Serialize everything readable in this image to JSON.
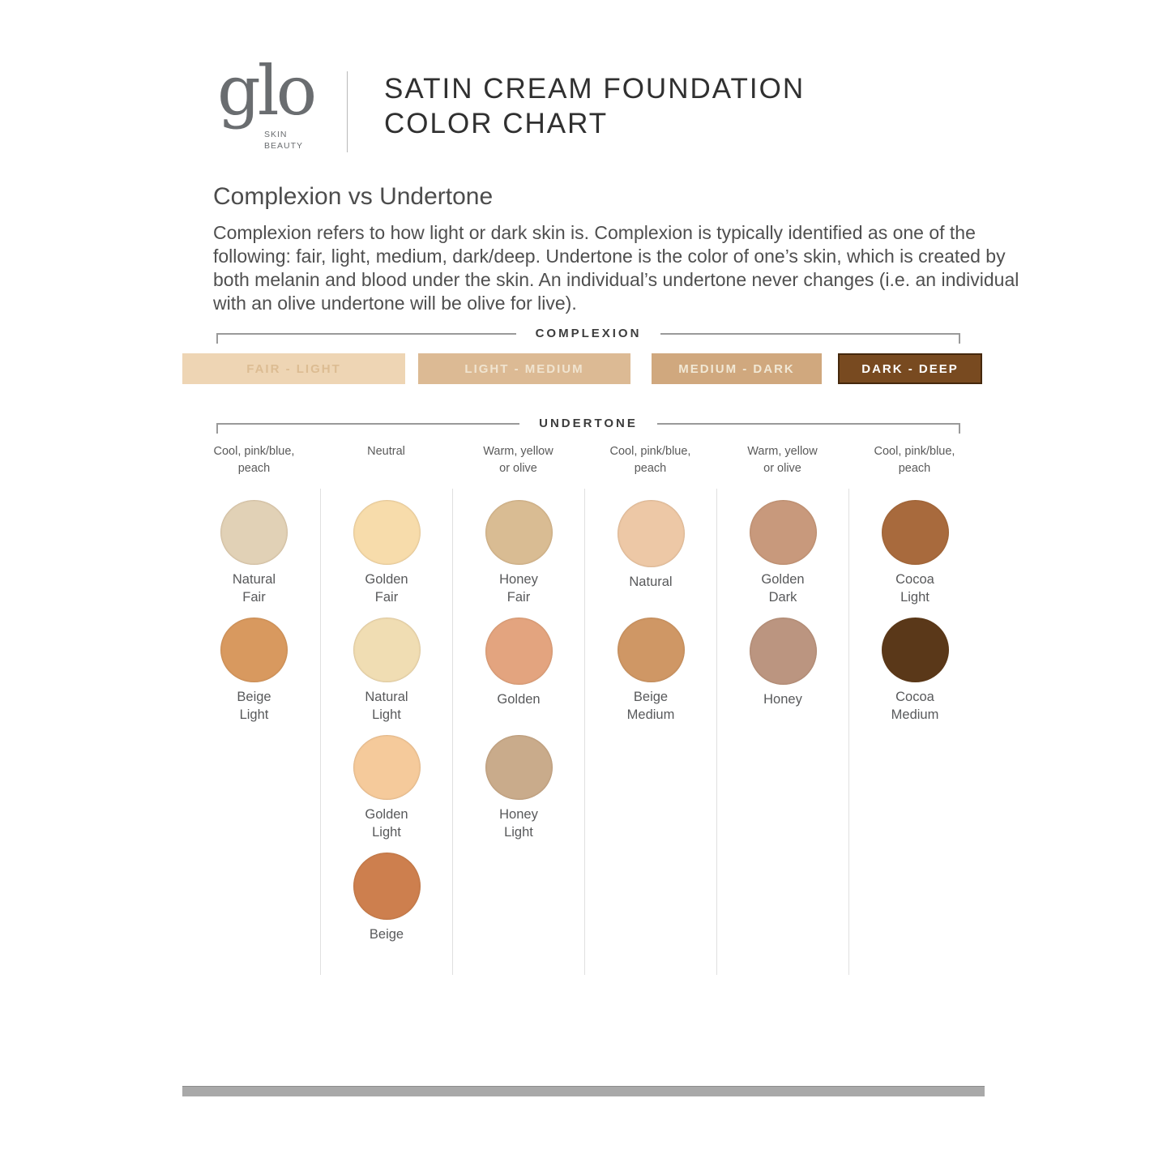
{
  "header": {
    "logo_text": "glo",
    "logo_sub": "SKIN\nBEAUTY",
    "title_line1": "SATIN CREAM FOUNDATION",
    "title_line2": "COLOR CHART"
  },
  "intro": {
    "heading": "Complexion vs Undertone",
    "body": "Complexion refers to how light or dark skin is. Complexion is typically identified as one of the following: fair, light, medium, dark/deep. Undertone is the color of one’s skin, which is created by both melanin and blood under the skin. An individual’s undertone never changes (i.e. an individual with an olive undertone will be olive for live)."
  },
  "complexion": {
    "label": "COMPLEXION",
    "bars": [
      {
        "label": "FAIR - LIGHT",
        "color": "#eed5b4",
        "text_color": "#dcbc92"
      },
      {
        "label": "LIGHT - MEDIUM",
        "color": "#dcba94",
        "text_color": "#f0e4d0"
      },
      {
        "label": "MEDIUM - DARK",
        "color": "#d0a87e",
        "text_color": "#f1e8d5"
      },
      {
        "label": "DARK - DEEP",
        "color": "#784a20",
        "text_color": "#ffffff",
        "border_color": "#45280d"
      }
    ]
  },
  "undertone": {
    "label": "UNDERTONE",
    "columns": [
      {
        "header": "Cool, pink/blue,\npeach",
        "swatches": [
          {
            "name": "Natural\nFair",
            "color": "#e1d1b6"
          },
          {
            "name": "Beige\nLight",
            "color": "#d8995f"
          }
        ]
      },
      {
        "header": "Neutral",
        "swatches": [
          {
            "name": "Golden\nFair",
            "color": "#f7dcab"
          },
          {
            "name": "Natural\nLight",
            "color": "#f0ddb3"
          },
          {
            "name": "Golden\nLight",
            "color": "#f5ca9b"
          },
          {
            "name": "Beige",
            "color": "#cd7f4e"
          }
        ]
      },
      {
        "header": "Warm, yellow\nor olive",
        "swatches": [
          {
            "name": "Honey\nFair",
            "color": "#d9bc93"
          },
          {
            "name": "Golden",
            "color": "#e3a47f"
          },
          {
            "name": "Honey\nLight",
            "color": "#c9ab8b"
          }
        ]
      },
      {
        "header": "Cool, pink/blue,\npeach",
        "swatches": [
          {
            "name": "Natural",
            "color": "#edc8a6"
          },
          {
            "name": "Beige\nMedium",
            "color": "#cf9765"
          }
        ]
      },
      {
        "header": "Warm, yellow\nor olive",
        "swatches": [
          {
            "name": "Golden\nDark",
            "color": "#c8997c"
          },
          {
            "name": "Honey",
            "color": "#bb9580"
          }
        ]
      },
      {
        "header": "Cool, pink/blue,\npeach",
        "swatches": [
          {
            "name": "Cocoa\nLight",
            "color": "#a86a3d"
          },
          {
            "name": "Cocoa\nMedium",
            "color": "#5a3819"
          }
        ]
      }
    ]
  },
  "footer": {
    "bar_color": "#a9a9a9"
  }
}
